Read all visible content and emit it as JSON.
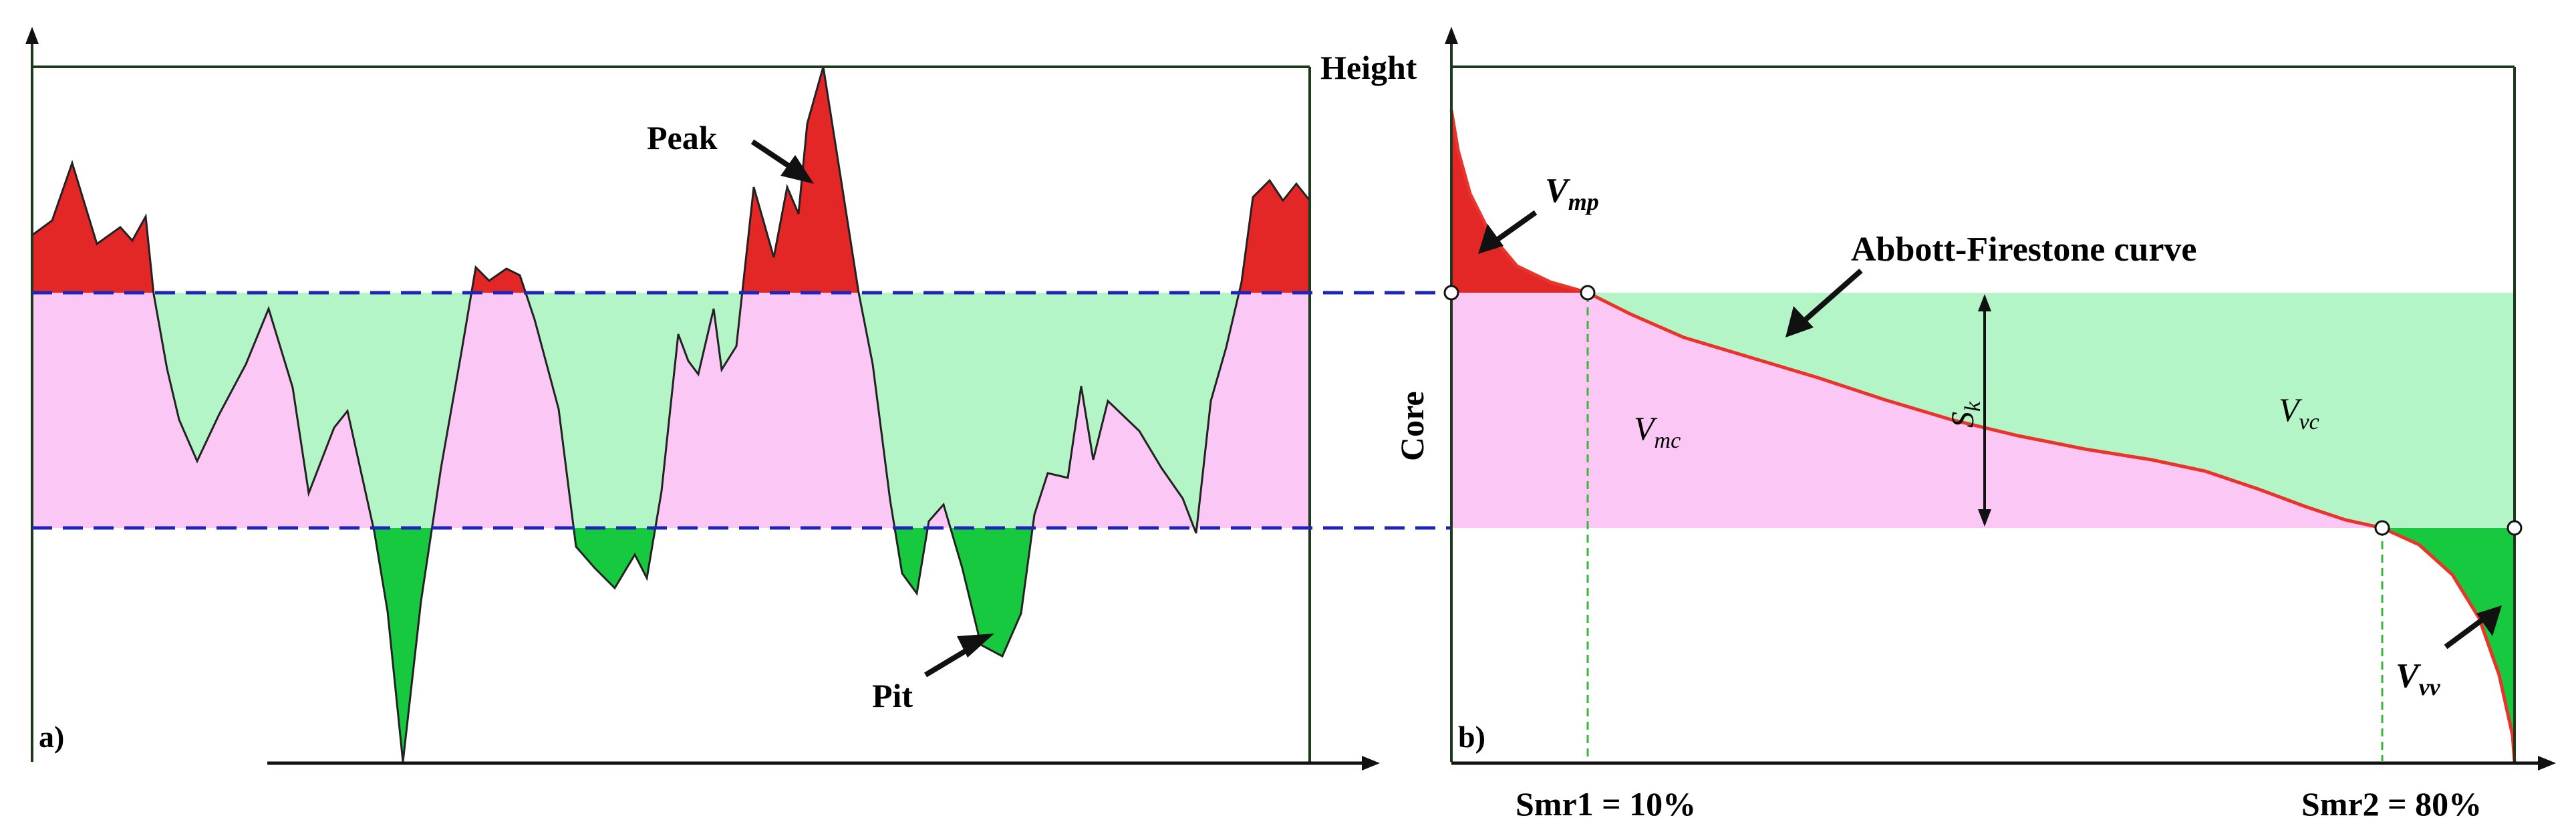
{
  "colors": {
    "peak_fill": "#e32626",
    "pit_fill": "#17c93e",
    "core_upper_fill": "#b4f5c8",
    "core_lower_fill": "#fbc8f5",
    "frame": "#1d3a1d",
    "guide_dash": "#1f24b8",
    "curve": "#e8342a",
    "smr_guide": "#3ab53a",
    "arrow": "#111111"
  },
  "panel_a": {
    "label": "a)",
    "annotations": {
      "peak": "Peak",
      "pit": "Pit"
    }
  },
  "panel_b": {
    "label": "b)",
    "y_axis_top_label": "Height",
    "y_axis_side_label": "Core",
    "curve_label": "Abbott-Firestone curve",
    "vmp": {
      "base": "V",
      "sub": "mp"
    },
    "vmc": {
      "base": "V",
      "sub": "mc"
    },
    "vvc": {
      "base": "V",
      "sub": "vc"
    },
    "vvv": {
      "base": "V",
      "sub": "vv"
    },
    "sk": {
      "base": "S",
      "sub": "k"
    },
    "smr1_label": "Smr1 = 10%",
    "smr2_label": "Smr2 = 80%"
  }
}
